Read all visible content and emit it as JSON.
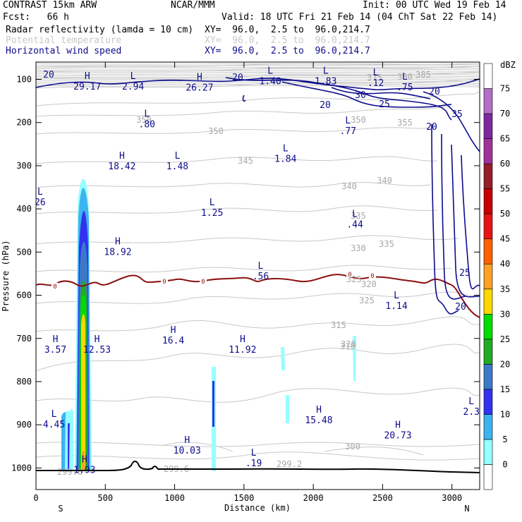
{
  "header": {
    "model": "CONTRAST 15km ARW",
    "org": "NCAR/MMM",
    "init": "Init: 00 UTC Wed 19 Feb 14",
    "fcst": "Fcst:   66 h",
    "valid": "Valid: 18 UTC Fri 21 Feb 14 (04 ChT Sat 22 Feb 14)",
    "fields": [
      {
        "name": "Radar reflectivity (lamda = 10 cm)",
        "xy": "XY=  96.0,  2.5 to  96.0,214.7",
        "color": "#000000"
      },
      {
        "name": "Potential temperature",
        "xy": "XY=  96.0,  2.5 to  96.0,214.7",
        "color": "#c8c8c8"
      },
      {
        "name": "Horizontal wind speed",
        "xy": "XY=  96.0,  2.5 to  96.0,214.7",
        "color": "#0c0c8c"
      }
    ]
  },
  "chart_data": {
    "type": "heatmap",
    "title": "",
    "xlabel": "Distance (km)",
    "ylabel": "Pressure (hPa)",
    "x_range": [
      0,
      3200
    ],
    "x_ticks": [
      0,
      500,
      1000,
      1500,
      2000,
      2500,
      3000
    ],
    "x_end_labels": {
      "left": "S",
      "right": "N"
    },
    "y_range_hPa": [
      1050,
      60
    ],
    "y_ticks": [
      100,
      200,
      300,
      400,
      500,
      600,
      700,
      800,
      900,
      1000
    ],
    "y_scale": "linear",
    "colorbar": {
      "unit": "dBZ",
      "levels": [
        0,
        5,
        10,
        15,
        20,
        25,
        30,
        35,
        40,
        45,
        50,
        55,
        60,
        65,
        70,
        75
      ],
      "colors": [
        "#ffffff",
        "#96ffff",
        "#3cb4f0",
        "#3232f0",
        "#3c78c8",
        "#23aa23",
        "#00dc00",
        "#ffd700",
        "#ffa028",
        "#ff6000",
        "#e61414",
        "#c80000",
        "#961e28",
        "#a0329b",
        "#7d28a0",
        "#b46ec8",
        "#ffffff"
      ]
    },
    "wind_contours_ms": [
      20,
      25,
      30,
      35
    ],
    "theta_contours_K": [
      299.2,
      299.6,
      300,
      305,
      310,
      315,
      320,
      325,
      330,
      335,
      340,
      345,
      350,
      355,
      375,
      380,
      385
    ],
    "freezing_level_label": "0",
    "extrema": [
      {
        "type": "H",
        "value": "29.17",
        "x": 370,
        "p": 112
      },
      {
        "type": "L",
        "value": "2.94",
        "x": 700,
        "p": 112
      },
      {
        "type": "H",
        "value": "26.27",
        "x": 1180,
        "p": 115
      },
      {
        "type": "L",
        "value": "1.40",
        "x": 1690,
        "p": 100
      },
      {
        "type": "L",
        "value": "1.83",
        "x": 2090,
        "p": 100
      },
      {
        "type": "L",
        "value": ".12",
        "x": 2450,
        "p": 104
      },
      {
        "type": "L",
        "value": ".75",
        "x": 2660,
        "p": 114
      },
      {
        "type": "L",
        "value": ".80",
        "x": 800,
        "p": 200
      },
      {
        "type": "L",
        "value": ".77",
        "x": 2250,
        "p": 215
      },
      {
        "type": "L",
        "value": "1.84",
        "x": 1800,
        "p": 280
      },
      {
        "type": "H",
        "value": "18.42",
        "x": 620,
        "p": 297
      },
      {
        "type": "L",
        "value": "1.48",
        "x": 1020,
        "p": 297
      },
      {
        "type": "L",
        "value": "26",
        "x": 30,
        "p": 380
      },
      {
        "type": "L",
        "value": "1.25",
        "x": 1270,
        "p": 405
      },
      {
        "type": "L",
        "value": ".44",
        "x": 2300,
        "p": 432
      },
      {
        "type": "H",
        "value": "18.92",
        "x": 590,
        "p": 495
      },
      {
        "type": "L",
        "value": ".56",
        "x": 1620,
        "p": 552
      },
      {
        "type": "L",
        "value": "1.14",
        "x": 2600,
        "p": 620
      },
      {
        "type": "H",
        "value": "16.4",
        "x": 990,
        "p": 700
      },
      {
        "type": "H",
        "value": "3.57",
        "x": 140,
        "p": 722
      },
      {
        "type": "H",
        "value": "12.53",
        "x": 440,
        "p": 722
      },
      {
        "type": "H",
        "value": "11.92",
        "x": 1490,
        "p": 722
      },
      {
        "type": "L",
        "value": "4.45",
        "x": 130,
        "p": 895
      },
      {
        "type": "H",
        "value": "15.48",
        "x": 2040,
        "p": 885
      },
      {
        "type": "H",
        "value": "20.73",
        "x": 2610,
        "p": 920
      },
      {
        "type": "L",
        "value": "2.3",
        "x": 3140,
        "p": 865
      },
      {
        "type": "H",
        "value": "10.03",
        "x": 1090,
        "p": 955
      },
      {
        "type": "L",
        "value": ".19",
        "x": 1570,
        "p": 985
      },
      {
        "type": "H",
        "value": "1.93",
        "x": 350,
        "p": 1000
      }
    ],
    "grid": false
  }
}
